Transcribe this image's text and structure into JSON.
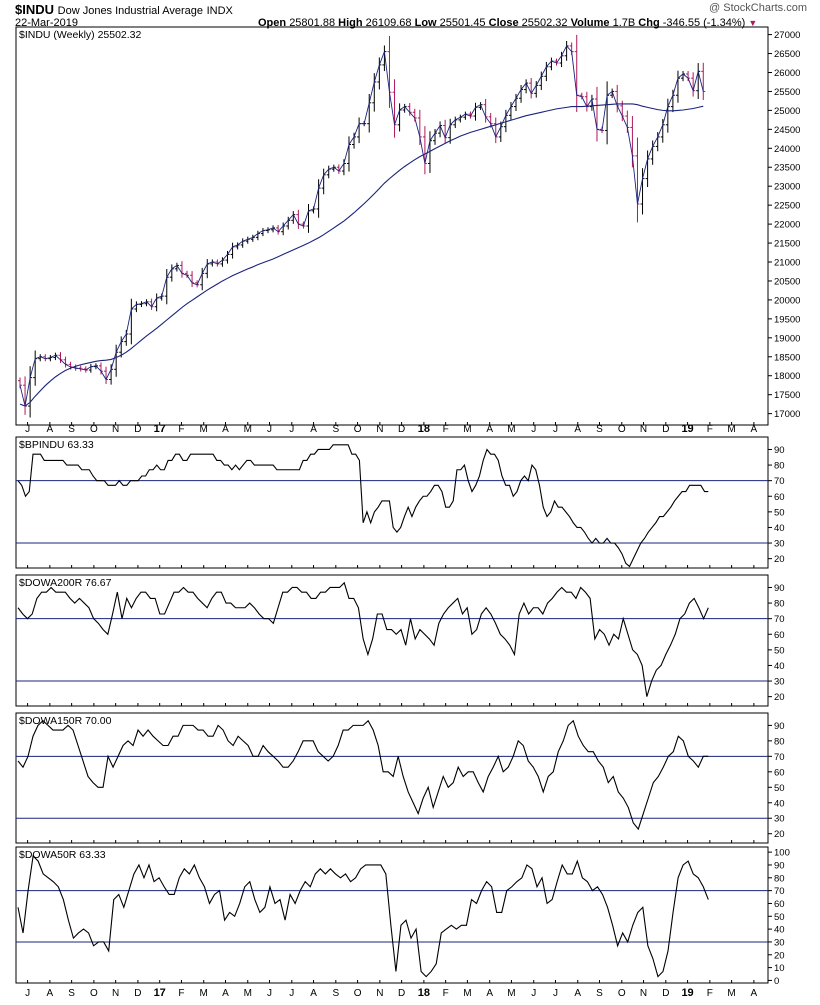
{
  "header": {
    "symbol": "$INDU",
    "name": "Dow Jones Industrial Average",
    "exchange": "INDX",
    "date": "22-Mar-2019",
    "copyright": "@ StockCharts.com",
    "open_label": "Open",
    "open": "25801.88",
    "high_label": "High",
    "high": "26109.68",
    "low_label": "Low",
    "low": "25501.45",
    "close_label": "Close",
    "close": "25502.32",
    "volume_label": "Volume",
    "volume": "1.7B",
    "chg_label": "Chg",
    "chg": "-346.55 (-1.34%)"
  },
  "colors": {
    "up": "#000000",
    "down": "#b0185a",
    "ma": "#1a237e",
    "refline": "#1a237e",
    "border": "#000000"
  },
  "x_axis": {
    "labels": [
      "J",
      "A",
      "S",
      "O",
      "N",
      "D",
      "17",
      "F",
      "M",
      "A",
      "M",
      "J",
      "J",
      "A",
      "S",
      "O",
      "N",
      "D",
      "18",
      "F",
      "M",
      "A",
      "M",
      "J",
      "J",
      "A",
      "S",
      "O",
      "N",
      "D",
      "19",
      "F",
      "M",
      "A"
    ],
    "bold_labels": [
      "17",
      "18",
      "19"
    ],
    "positions": [
      1.5,
      5.9,
      10.2,
      14.6,
      18.9,
      23.3,
      27.6,
      31.9,
      36.3,
      40.6,
      45,
      49.3,
      53.7,
      58,
      62.4,
      66.7,
      71.1,
      75.4,
      79.8,
      84.1,
      88.4,
      92.8,
      97.1,
      101.5,
      105.8,
      110.2,
      114.5,
      118.9,
      123.2,
      127.6,
      131.9,
      136.3,
      140.6,
      145
    ]
  },
  "chart_data": [
    {
      "type": "candlestick",
      "id": "price",
      "legend": "$INDU (Weekly) 25502.32",
      "moving_average_label": "",
      "ylim": [
        16700,
        27200
      ],
      "yticks": [
        17000,
        17500,
        18000,
        18500,
        19000,
        19500,
        20000,
        20500,
        21000,
        21500,
        22000,
        22500,
        23000,
        23500,
        24000,
        24500,
        25000,
        25500,
        26000,
        26500,
        27000
      ],
      "close": [
        17750,
        17200,
        17950,
        18450,
        18500,
        18450,
        18480,
        18540,
        18420,
        18300,
        18230,
        18200,
        18180,
        18150,
        18240,
        18260,
        18120,
        17900,
        18170,
        18620,
        18900,
        19100,
        19760,
        19880,
        19900,
        19950,
        19820,
        20050,
        20100,
        20600,
        20820,
        20910,
        20700,
        20650,
        20450,
        20400,
        20700,
        20950,
        21000,
        20950,
        21050,
        21200,
        21400,
        21450,
        21550,
        21600,
        21650,
        21750,
        21830,
        21850,
        21900,
        21800,
        21950,
        22100,
        22250,
        22000,
        21950,
        22350,
        22400,
        22950,
        23300,
        23450,
        23500,
        23400,
        23600,
        24100,
        24300,
        24650,
        24650,
        25200,
        25750,
        26200,
        26550,
        25480,
        24620,
        25010,
        25100,
        24950,
        24800,
        24300,
        23600,
        24200,
        24400,
        24600,
        24280,
        24620,
        24750,
        24820,
        24900,
        24850,
        25080,
        25150,
        24830,
        24650,
        24300,
        24570,
        24870,
        25100,
        25320,
        25550,
        25720,
        25450,
        25660,
        25900,
        26150,
        26300,
        26250,
        26440,
        26700,
        26550,
        25400,
        25360,
        25100,
        25300,
        24500,
        24470,
        25400,
        25500,
        25120,
        24850,
        24550,
        23800,
        22530,
        23200,
        23720,
        24050,
        24300,
        24620,
        25100,
        25400,
        25850,
        25960,
        25850,
        25520,
        26030,
        25500
      ],
      "ma": [
        17250,
        17200,
        17300,
        17460,
        17600,
        17740,
        17860,
        17970,
        18060,
        18140,
        18200,
        18250,
        18290,
        18320,
        18350,
        18380,
        18400,
        18410,
        18430,
        18480,
        18540,
        18620,
        18720,
        18830,
        18940,
        19050,
        19150,
        19250,
        19360,
        19470,
        19580,
        19690,
        19800,
        19900,
        19990,
        20080,
        20170,
        20260,
        20340,
        20420,
        20500,
        20570,
        20640,
        20700,
        20760,
        20820,
        20870,
        20930,
        20980,
        21030,
        21080,
        21140,
        21200,
        21260,
        21320,
        21380,
        21440,
        21500,
        21570,
        21640,
        21720,
        21810,
        21900,
        21990,
        22080,
        22190,
        22300,
        22420,
        22540,
        22670,
        22800,
        22940,
        23080,
        23200,
        23310,
        23420,
        23520,
        23610,
        23700,
        23780,
        23850,
        23920,
        23990,
        24060,
        24130,
        24200,
        24260,
        24320,
        24370,
        24420,
        24460,
        24500,
        24540,
        24580,
        24620,
        24660,
        24700,
        24740,
        24780,
        24820,
        24860,
        24890,
        24920,
        24950,
        24980,
        25010,
        25040,
        25060,
        25080,
        25100,
        25100,
        25100,
        25110,
        25120,
        25130,
        25140,
        25150,
        25160,
        25170,
        25170,
        25170,
        25170,
        25150,
        25110,
        25080,
        25050,
        25020,
        25000,
        24990,
        24990,
        25000,
        25010,
        25030,
        25050,
        25080,
        25110
      ]
    },
    {
      "type": "line",
      "id": "bpindu",
      "title": "$BPINDU 63.33",
      "ylim": [
        14,
        98
      ],
      "yticks": [
        20,
        30,
        40,
        50,
        60,
        70,
        80,
        90
      ],
      "reflines": [
        70,
        30
      ],
      "values": [
        70,
        67,
        60,
        63,
        87,
        87,
        87,
        83,
        83,
        83,
        83,
        83,
        83,
        80,
        80,
        80,
        80,
        77,
        77,
        77,
        73,
        70,
        70,
        70,
        67,
        67,
        67,
        70,
        67,
        67,
        70,
        70,
        70,
        73,
        73,
        77,
        77,
        80,
        77,
        77,
        83,
        83,
        87,
        87,
        83,
        83,
        87,
        87,
        87,
        87,
        87,
        87,
        87,
        83,
        83,
        80,
        80,
        77,
        80,
        77,
        80,
        83,
        83,
        80,
        80,
        80,
        80,
        80,
        80,
        77,
        77,
        77,
        77,
        77,
        77,
        77,
        83,
        83,
        87,
        87,
        90,
        90,
        90,
        90,
        93,
        93,
        93,
        93,
        93,
        87,
        87,
        83,
        43,
        50,
        43,
        50,
        53,
        57,
        57,
        57,
        40,
        37,
        40,
        47,
        53,
        47,
        53,
        57,
        60,
        60,
        63,
        67,
        67,
        63,
        53,
        53,
        57,
        77,
        77,
        80,
        70,
        63,
        67,
        73,
        83,
        90,
        87,
        87,
        83,
        73,
        67,
        67,
        60,
        63,
        70,
        73,
        70,
        80,
        77,
        67,
        53,
        47,
        50,
        57,
        53,
        53,
        50,
        47,
        43,
        40,
        40,
        37,
        33,
        30,
        33,
        30,
        30,
        33,
        30,
        30,
        27,
        23,
        17,
        15,
        20,
        25,
        30,
        33,
        37,
        40,
        43,
        47,
        47,
        50,
        53,
        57,
        60,
        63,
        63,
        67,
        67,
        67,
        67,
        63,
        63
      ]
    },
    {
      "type": "line",
      "id": "dowa200r",
      "title": "$DOWA200R 76.67",
      "ylim": [
        14,
        98
      ],
      "yticks": [
        20,
        30,
        40,
        50,
        60,
        70,
        80,
        90
      ],
      "reflines": [
        70,
        30
      ],
      "values": [
        77,
        73,
        70,
        73,
        83,
        87,
        87,
        90,
        87,
        87,
        87,
        83,
        80,
        83,
        80,
        77,
        70,
        67,
        63,
        60,
        73,
        87,
        70,
        83,
        77,
        83,
        87,
        87,
        83,
        83,
        73,
        73,
        80,
        87,
        87,
        90,
        87,
        87,
        83,
        80,
        77,
        83,
        87,
        87,
        80,
        80,
        77,
        77,
        77,
        80,
        77,
        73,
        70,
        70,
        67,
        77,
        87,
        87,
        90,
        90,
        87,
        87,
        83,
        83,
        87,
        87,
        90,
        90,
        90,
        93,
        83,
        83,
        77,
        57,
        47,
        57,
        73,
        73,
        63,
        63,
        60,
        63,
        53,
        70,
        57,
        63,
        60,
        57,
        53,
        67,
        73,
        77,
        80,
        83,
        73,
        77,
        60,
        63,
        73,
        77,
        73,
        67,
        60,
        57,
        53,
        47,
        73,
        80,
        73,
        77,
        77,
        73,
        80,
        83,
        87,
        90,
        87,
        87,
        83,
        90,
        87,
        83,
        57,
        63,
        60,
        53,
        60,
        57,
        70,
        60,
        50,
        47,
        40,
        20,
        30,
        37,
        40,
        47,
        53,
        60,
        70,
        73,
        80,
        83,
        77,
        70,
        77
      ]
    },
    {
      "type": "line",
      "id": "dowa150r",
      "title": "$DOWA150R 70.00",
      "ylim": [
        14,
        98
      ],
      "yticks": [
        20,
        30,
        40,
        50,
        60,
        70,
        80,
        90
      ],
      "reflines": [
        70,
        30
      ],
      "values": [
        67,
        63,
        70,
        83,
        90,
        93,
        90,
        87,
        87,
        87,
        90,
        87,
        77,
        67,
        57,
        53,
        50,
        50,
        70,
        63,
        70,
        77,
        80,
        77,
        87,
        83,
        87,
        83,
        80,
        77,
        77,
        83,
        83,
        90,
        90,
        90,
        87,
        87,
        83,
        83,
        90,
        87,
        80,
        77,
        83,
        80,
        77,
        70,
        70,
        77,
        73,
        70,
        67,
        63,
        63,
        67,
        73,
        80,
        80,
        80,
        73,
        70,
        67,
        70,
        77,
        87,
        87,
        90,
        90,
        90,
        93,
        87,
        77,
        60,
        60,
        57,
        70,
        57,
        47,
        40,
        33,
        43,
        50,
        37,
        47,
        57,
        50,
        53,
        63,
        57,
        60,
        60,
        53,
        47,
        57,
        63,
        70,
        60,
        63,
        70,
        80,
        77,
        67,
        63,
        57,
        47,
        57,
        60,
        73,
        80,
        90,
        93,
        83,
        77,
        73,
        73,
        67,
        63,
        53,
        57,
        47,
        43,
        37,
        27,
        23,
        33,
        43,
        53,
        57,
        63,
        70,
        73,
        83,
        80,
        70,
        67,
        63,
        70,
        70
      ]
    },
    {
      "type": "line",
      "id": "dowa50r",
      "title": "$DOWA50R 63.33",
      "ylim": [
        -2,
        104
      ],
      "yticks": [
        0,
        10,
        20,
        30,
        40,
        50,
        60,
        70,
        80,
        90,
        100
      ],
      "reflines": [
        70,
        30
      ],
      "values": [
        57,
        37,
        70,
        97,
        93,
        83,
        80,
        77,
        73,
        63,
        47,
        33,
        37,
        40,
        37,
        27,
        30,
        30,
        23,
        63,
        67,
        57,
        70,
        83,
        90,
        80,
        90,
        77,
        80,
        73,
        67,
        67,
        80,
        87,
        83,
        90,
        80,
        73,
        60,
        67,
        70,
        47,
        53,
        50,
        60,
        73,
        77,
        63,
        53,
        57,
        73,
        60,
        63,
        47,
        67,
        60,
        70,
        77,
        73,
        83,
        87,
        83,
        87,
        83,
        80,
        83,
        77,
        80,
        87,
        90,
        90,
        90,
        90,
        83,
        43,
        7,
        43,
        47,
        33,
        40,
        7,
        3,
        7,
        13,
        37,
        40,
        43,
        40,
        43,
        43,
        63,
        60,
        70,
        77,
        73,
        53,
        53,
        70,
        73,
        77,
        80,
        90,
        87,
        73,
        80,
        60,
        63,
        77,
        90,
        83,
        83,
        93,
        80,
        77,
        70,
        73,
        67,
        57,
        43,
        27,
        37,
        30,
        43,
        53,
        57,
        27,
        17,
        3,
        7,
        23,
        53,
        80,
        90,
        93,
        83,
        80,
        73,
        63
      ]
    }
  ]
}
